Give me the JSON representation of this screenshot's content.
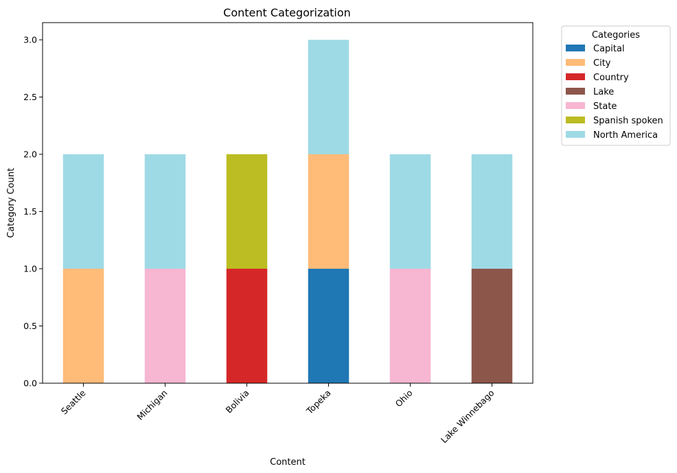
{
  "chart_data": {
    "type": "bar",
    "stacked": true,
    "title": "Content Categorization",
    "xlabel": "Content",
    "ylabel": "Category Count",
    "ylim": [
      0,
      3.15
    ],
    "yticks": [
      "0.0",
      "0.5",
      "1.0",
      "1.5",
      "2.0",
      "2.5",
      "3.0"
    ],
    "categories": [
      "Seattle",
      "Michigan",
      "Bolivia",
      "Topeka",
      "Ohio",
      "Lake Winnebago"
    ],
    "series": [
      {
        "name": "Capital",
        "color": "#1f77b4",
        "values": [
          0,
          0,
          0,
          1,
          0,
          0
        ]
      },
      {
        "name": "City",
        "color": "#ffbb78",
        "values": [
          1,
          0,
          0,
          1,
          0,
          0
        ]
      },
      {
        "name": "Country",
        "color": "#d62728",
        "values": [
          0,
          0,
          1,
          0,
          0,
          0
        ]
      },
      {
        "name": "Lake",
        "color": "#8c564b",
        "values": [
          0,
          0,
          0,
          0,
          0,
          1
        ]
      },
      {
        "name": "State",
        "color": "#f7b6d2",
        "values": [
          0,
          1,
          0,
          0,
          1,
          0
        ]
      },
      {
        "name": "Spanish spoken",
        "color": "#bcbd22",
        "values": [
          0,
          0,
          1,
          0,
          0,
          0
        ]
      },
      {
        "name": "North America",
        "color": "#9edae5",
        "values": [
          1,
          1,
          0,
          1,
          1,
          1
        ]
      }
    ],
    "legend": {
      "title": "Categories",
      "placement": "outside-top-right"
    },
    "grid": false
  }
}
